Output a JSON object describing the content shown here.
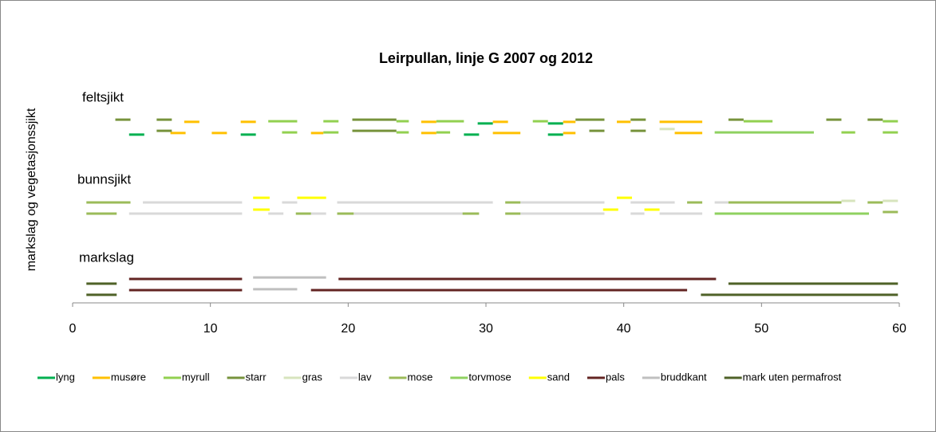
{
  "chart_data": {
    "type": "segment",
    "title": "Leirpullan, linje G 2007 og 2012",
    "ylabel": "markslag og vegetasjonssjikt",
    "annotations": [
      "feltsjikt",
      "bunnsjikt",
      "markslag"
    ],
    "xlim": [
      0,
      60
    ],
    "xticks": [
      0,
      10,
      20,
      30,
      40,
      50,
      60
    ],
    "ylim": [
      0,
      10
    ],
    "series": [
      {
        "name": "lyng",
        "color": "#00b050",
        "segments": [
          [
            29.4,
            30.5,
            8.04
          ],
          [
            34.5,
            35.6,
            8.04
          ],
          [
            4.1,
            5.2,
            7.54
          ],
          [
            12.2,
            13.3,
            7.54
          ],
          [
            28.4,
            29.5,
            7.54
          ],
          [
            34.5,
            35.6,
            7.54
          ]
        ]
      },
      {
        "name": "musøre",
        "color": "#ffc000",
        "segments": [
          [
            8.1,
            9.2,
            8.11
          ],
          [
            12.2,
            13.3,
            8.11
          ],
          [
            25.3,
            26.4,
            8.11
          ],
          [
            30.5,
            31.6,
            8.11
          ],
          [
            35.6,
            36.5,
            8.11
          ],
          [
            39.5,
            40.5,
            8.11
          ],
          [
            42.6,
            45.7,
            8.11
          ],
          [
            7.1,
            8.2,
            7.61
          ],
          [
            10.1,
            11.2,
            7.61
          ],
          [
            17.3,
            18.2,
            7.61
          ],
          [
            25.3,
            26.4,
            7.61
          ],
          [
            30.5,
            32.5,
            7.61
          ],
          [
            35.6,
            36.5,
            7.61
          ],
          [
            43.7,
            45.7,
            7.61
          ]
        ]
      },
      {
        "name": "myrull",
        "color": "#92d050",
        "segments": [
          [
            14.2,
            16.3,
            8.14
          ],
          [
            18.2,
            19.3,
            8.14
          ],
          [
            23.5,
            24.4,
            8.14
          ],
          [
            26.4,
            28.4,
            8.14
          ],
          [
            33.4,
            34.5,
            8.14
          ],
          [
            48.7,
            50.8,
            8.14
          ],
          [
            58.8,
            59.9,
            8.14
          ],
          [
            15.2,
            16.3,
            7.64
          ],
          [
            18.2,
            19.3,
            7.64
          ],
          [
            23.5,
            24.4,
            7.64
          ],
          [
            26.4,
            27.4,
            7.64
          ],
          [
            55.8,
            56.8,
            7.64
          ],
          [
            58.8,
            59.9,
            7.64
          ]
        ]
      },
      {
        "name": "starr",
        "color": "#77933c",
        "segments": [
          [
            3.1,
            4.2,
            8.21
          ],
          [
            6.1,
            7.2,
            8.21
          ],
          [
            20.3,
            23.5,
            8.21
          ],
          [
            36.5,
            38.6,
            8.21
          ],
          [
            40.5,
            41.6,
            8.21
          ],
          [
            47.6,
            48.7,
            8.21
          ],
          [
            54.7,
            55.8,
            8.21
          ],
          [
            57.7,
            58.8,
            8.21
          ],
          [
            6.1,
            7.2,
            7.71
          ],
          [
            20.3,
            23.5,
            7.71
          ],
          [
            37.5,
            38.6,
            7.71
          ],
          [
            40.5,
            41.6,
            7.71
          ]
        ]
      },
      {
        "name": "gras",
        "color": "#d7e4bd",
        "segments": [
          [
            42.6,
            43.7,
            7.79
          ],
          [
            55.8,
            56.8,
            4.57
          ],
          [
            58.8,
            59.9,
            4.57
          ]
        ]
      },
      {
        "name": "lav",
        "color": "#d9d9d9",
        "segments": [
          [
            5.1,
            12.3,
            4.5
          ],
          [
            15.2,
            16.3,
            4.5
          ],
          [
            19.2,
            30.5,
            4.5
          ],
          [
            32.5,
            38.6,
            4.5
          ],
          [
            40.5,
            43.7,
            4.5
          ],
          [
            46.6,
            47.6,
            4.5
          ],
          [
            4.1,
            12.3,
            4.0
          ],
          [
            14.2,
            15.3,
            4.0
          ],
          [
            17.3,
            18.4,
            4.0
          ],
          [
            20.4,
            28.3,
            4.0
          ],
          [
            32.5,
            38.6,
            4.0
          ],
          [
            40.5,
            41.5,
            4.0
          ],
          [
            42.6,
            45.7,
            4.0
          ]
        ]
      },
      {
        "name": "mose",
        "color": "#9bbb59",
        "segments": [
          [
            1.0,
            4.2,
            4.5
          ],
          [
            31.4,
            32.5,
            4.5
          ],
          [
            44.6,
            45.7,
            4.5
          ],
          [
            47.6,
            55.8,
            4.5
          ],
          [
            57.7,
            58.8,
            4.5
          ],
          [
            1.0,
            3.2,
            4.0
          ],
          [
            16.2,
            17.3,
            4.0
          ],
          [
            19.2,
            20.4,
            4.0
          ],
          [
            28.3,
            29.5,
            4.0
          ],
          [
            31.4,
            32.5,
            4.0
          ],
          [
            58.8,
            59.9,
            4.07
          ]
        ]
      },
      {
        "name": "torvmose",
        "color": "#8fd160",
        "segments": [
          [
            46.6,
            53.8,
            7.64
          ],
          [
            46.6,
            57.8,
            4.0
          ]
        ]
      },
      {
        "name": "sand",
        "color": "#ffff00",
        "segments": [
          [
            13.1,
            14.3,
            4.71
          ],
          [
            16.3,
            18.4,
            4.71
          ],
          [
            39.5,
            40.6,
            4.71
          ],
          [
            13.1,
            14.3,
            4.18
          ],
          [
            38.5,
            39.6,
            4.18
          ],
          [
            41.5,
            42.6,
            4.18
          ]
        ]
      },
      {
        "name": "pals",
        "color": "#632523",
        "segments": [
          [
            4.1,
            12.3,
            1.07
          ],
          [
            19.3,
            46.7,
            1.07
          ],
          [
            4.1,
            12.3,
            0.57
          ],
          [
            17.3,
            44.6,
            0.57
          ]
        ]
      },
      {
        "name": "bruddkant",
        "color": "#bfbfbf",
        "segments": [
          [
            13.1,
            18.4,
            1.14
          ],
          [
            13.1,
            16.3,
            0.61
          ]
        ]
      },
      {
        "name": "mark uten permafrost",
        "color": "#4f6228",
        "segments": [
          [
            1.0,
            3.2,
            0.86
          ],
          [
            47.6,
            59.9,
            0.86
          ],
          [
            1.0,
            3.2,
            0.36
          ],
          [
            45.6,
            59.9,
            0.36
          ]
        ]
      }
    ]
  }
}
